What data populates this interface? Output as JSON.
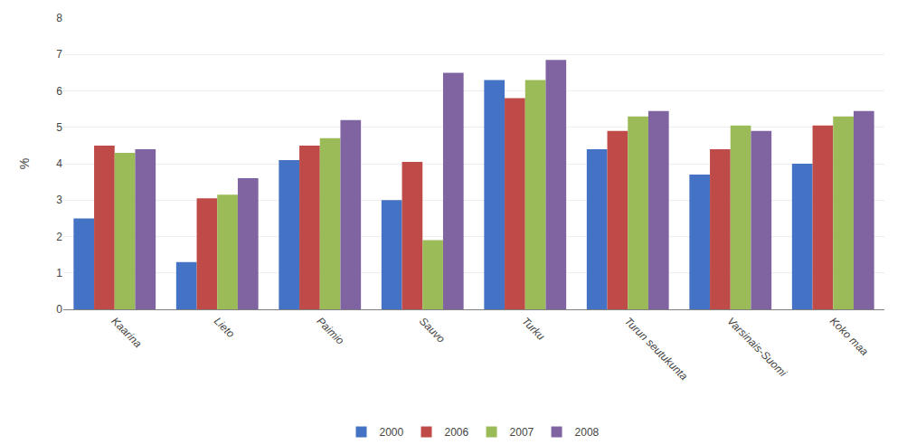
{
  "chart_data": {
    "type": "bar",
    "categories": [
      "Kaarina",
      "Lieto",
      "Paimio",
      "Sauvo",
      "Turku",
      "Turun seutukunta",
      "Varsinais-Suomi",
      "Koko maa"
    ],
    "series": [
      {
        "name": "2000",
        "color": "#4472C4",
        "values": [
          2.5,
          1.3,
          4.1,
          3.0,
          6.3,
          4.4,
          3.7,
          4.0
        ]
      },
      {
        "name": "2006",
        "color": "#BE4B48",
        "values": [
          4.5,
          3.05,
          4.5,
          4.05,
          5.8,
          4.9,
          4.4,
          5.05
        ]
      },
      {
        "name": "2007",
        "color": "#9BBB59",
        "values": [
          4.3,
          3.15,
          4.7,
          1.9,
          6.3,
          5.3,
          5.05,
          5.3
        ]
      },
      {
        "name": "2008",
        "color": "#8064A2",
        "values": [
          4.4,
          3.6,
          5.2,
          6.5,
          6.85,
          5.45,
          4.9,
          5.45
        ]
      }
    ],
    "ylabel": "%",
    "ylim": [
      0,
      8
    ],
    "yticks": [
      0,
      1,
      2,
      3,
      4,
      5,
      6,
      7,
      8
    ],
    "grid": true,
    "legend": "bottom"
  }
}
